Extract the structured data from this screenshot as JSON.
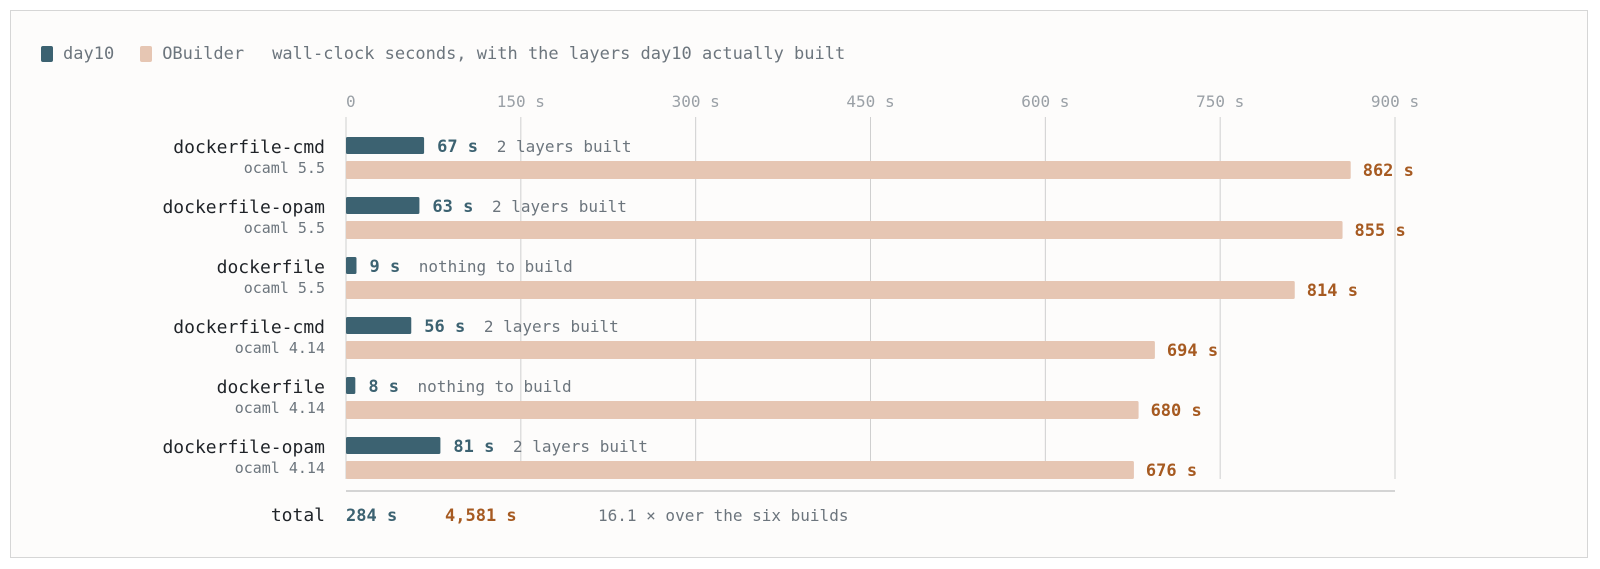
{
  "legend": {
    "day10_label": "day10",
    "obuilder_label": "OBuilder",
    "note": "wall-clock seconds, with the layers day10 actually built"
  },
  "colors": {
    "day10": "#3c6271",
    "obuilder": "#e6c6b3",
    "day10_text": "#3c6271",
    "obuilder_text": "#a65a21",
    "grid": "#cfcfcf",
    "label": "#1f2328",
    "sublabel": "#6c757d"
  },
  "chart_data": {
    "type": "bar",
    "orientation": "horizontal",
    "unit": "s",
    "xlim": [
      0,
      900
    ],
    "xticks": [
      0,
      150,
      300,
      450,
      600,
      750,
      900
    ],
    "xtick_labels": [
      "0",
      "150 s",
      "300 s",
      "450 s",
      "600 s",
      "750 s",
      "900 s"
    ],
    "grid": true,
    "legend_position": "top-left",
    "categories": [
      {
        "name": "dockerfile-cmd",
        "version": "ocaml 5.5"
      },
      {
        "name": "dockerfile-opam",
        "version": "ocaml 5.5"
      },
      {
        "name": "dockerfile",
        "version": "ocaml 5.5"
      },
      {
        "name": "dockerfile-cmd",
        "version": "ocaml 4.14"
      },
      {
        "name": "dockerfile",
        "version": "ocaml 4.14"
      },
      {
        "name": "dockerfile-opam",
        "version": "ocaml 4.14"
      }
    ],
    "series": [
      {
        "name": "day10",
        "values": [
          67,
          63,
          9,
          56,
          8,
          81
        ],
        "value_labels": [
          "67 s",
          "63 s",
          "9 s",
          "56 s",
          "8 s",
          "81 s"
        ],
        "annotations": [
          "2 layers built",
          "2 layers built",
          "nothing to build",
          "2 layers built",
          "nothing to build",
          "2 layers built"
        ]
      },
      {
        "name": "OBuilder",
        "values": [
          862,
          855,
          814,
          694,
          680,
          676
        ],
        "value_labels": [
          "862 s",
          "855 s",
          "814 s",
          "694 s",
          "680 s",
          "676 s"
        ]
      }
    ],
    "total": {
      "label": "total",
      "day10": "284 s",
      "obuilder": "4,581 s",
      "note": "16.1 × over the six builds"
    }
  }
}
